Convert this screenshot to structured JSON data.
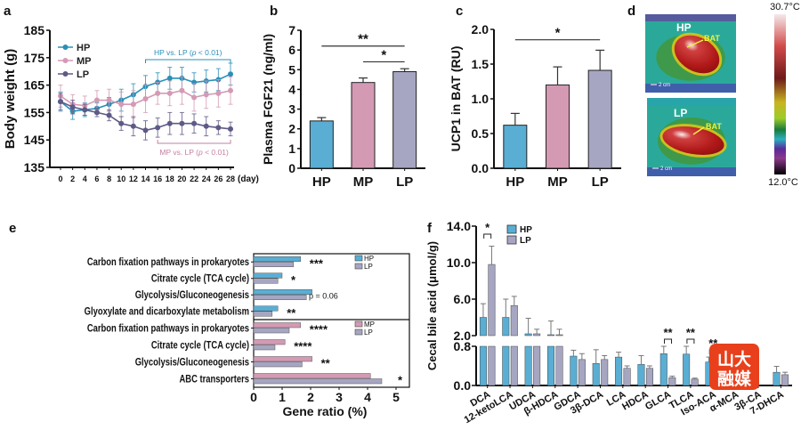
{
  "colors": {
    "HP": "#5aaed4",
    "MP": "#d49ab4",
    "LP": "#a6a6c2",
    "HP_line": "#2a8fb8",
    "MP_line": "#c47fa0",
    "LP_line": "#5e5a86",
    "axis": "#111111",
    "watermark_bg": "#e8401c",
    "watermark_text": "#ffffff"
  },
  "watermark": {
    "line1": "山大",
    "line2": "融媒"
  },
  "chart_data": [
    {
      "id": "a",
      "panel_letter": "a",
      "type": "line",
      "title": "",
      "xlabel": "(day)",
      "ylabel": "Body weight (g)",
      "x": [
        0,
        2,
        4,
        6,
        8,
        10,
        12,
        14,
        16,
        18,
        20,
        22,
        24,
        26,
        28
      ],
      "x_ticks": [
        "0",
        "2",
        "4",
        "6",
        "8",
        "10",
        "12",
        "14",
        "16",
        "18",
        "20",
        "22",
        "24",
        "26",
        "28"
      ],
      "y_ticks": [
        "135",
        "145",
        "155",
        "165",
        "175",
        "185"
      ],
      "ylim": [
        135,
        185
      ],
      "legend": [
        "HP",
        "MP",
        "LP"
      ],
      "legend_position": "top-left",
      "series": [
        {
          "name": "HP",
          "values": [
            159,
            155.5,
            156,
            156.5,
            158,
            159.5,
            161.5,
            164.5,
            166,
            167.5,
            167.5,
            166,
            166.5,
            167,
            169
          ],
          "errors": [
            3.5,
            3,
            2.5,
            2,
            2.5,
            4,
            4,
            4,
            3.5,
            4,
            4,
            3.5,
            4,
            4,
            4
          ]
        },
        {
          "name": "MP",
          "values": [
            161,
            158,
            157.5,
            159.5,
            159.5,
            158,
            158,
            160,
            162,
            162,
            163,
            160.5,
            161.5,
            162,
            163
          ],
          "errors": [
            4,
            3.5,
            3.5,
            3.5,
            4,
            4.5,
            5,
            5,
            4,
            4.5,
            5,
            5,
            5,
            5,
            5
          ]
        },
        {
          "name": "LP",
          "values": [
            159,
            157,
            156,
            155,
            154,
            151,
            150,
            148.5,
            149.5,
            151,
            151,
            151,
            150,
            149.5,
            149
          ],
          "errors": [
            3,
            2.5,
            2,
            1.5,
            2,
            2.5,
            3.5,
            3.5,
            3.5,
            4,
            4,
            3.5,
            3.5,
            2.5,
            2.5
          ]
        }
      ],
      "annotations": [
        {
          "text_pre": "HP vs. LP (",
          "p": "p",
          "text_post": " < 0.01)",
          "color": "HP_line",
          "from_day": 14,
          "to_day": 28,
          "position": "above"
        },
        {
          "text_pre": "MP vs. LP (",
          "p": "p",
          "text_post": " < 0.01)",
          "color": "MP_line",
          "from_day": 16,
          "to_day": 28,
          "position": "below"
        }
      ]
    },
    {
      "id": "b",
      "panel_letter": "b",
      "type": "bar",
      "ylabel": "Plasma FGF21 (ng/ml)",
      "categories": [
        "HP",
        "MP",
        "LP"
      ],
      "values": [
        2.4,
        4.35,
        4.9
      ],
      "errors": [
        0.17,
        0.23,
        0.15
      ],
      "ylim": [
        0,
        7
      ],
      "y_ticks": [
        "0",
        "1",
        "2",
        "3",
        "4",
        "5",
        "6",
        "7"
      ],
      "significance": [
        {
          "from": "HP",
          "to": "LP",
          "label": "**",
          "level": 6.2
        },
        {
          "from": "MP",
          "to": "LP",
          "label": "*",
          "level": 5.4
        }
      ]
    },
    {
      "id": "c",
      "panel_letter": "c",
      "type": "bar",
      "ylabel": "UCP1 in BAT (RU)",
      "categories": [
        "HP",
        "MP",
        "LP"
      ],
      "values": [
        0.62,
        1.2,
        1.41
      ],
      "errors": [
        0.17,
        0.26,
        0.29
      ],
      "ylim": [
        0,
        2.0
      ],
      "y_ticks": [
        "0.0",
        "0.5",
        "1.0",
        "1.5",
        "2.0"
      ],
      "significance": [
        {
          "from": "HP",
          "to": "LP",
          "label": "*",
          "level": 1.85
        }
      ]
    },
    {
      "id": "d",
      "panel_letter": "d",
      "type": "heatmap",
      "images": [
        {
          "label": "HP",
          "arrow_label": "BAT",
          "scale_label": "2 cm"
        },
        {
          "label": "LP",
          "arrow_label": "BAT",
          "scale_label": "2 cm"
        }
      ],
      "colorbar": {
        "max_label": "30.7°C",
        "min_label": "12.0°C",
        "max": 30.7,
        "min": 12.0
      }
    },
    {
      "id": "e",
      "panel_letter": "e",
      "type": "bar",
      "orientation": "horizontal",
      "xlabel": "Gene ratio (%)",
      "xlim": [
        0,
        5
      ],
      "x_ticks": [
        "0",
        "1",
        "2",
        "3",
        "4",
        "5"
      ],
      "groups": [
        {
          "legend": [
            "HP",
            "LP"
          ],
          "categories": [
            "Carbon fixation pathways in prokaryotes",
            "Citrate cycle (TCA cycle)",
            "Glycolysis/Gluconeogenesis",
            "Glyoxylate and dicarboxylate metabolism"
          ],
          "series": [
            {
              "name": "HP",
              "values": [
                1.65,
                1.0,
                2.05,
                0.85
              ]
            },
            {
              "name": "LP",
              "values": [
                1.4,
                0.85,
                1.85,
                0.65
              ]
            }
          ],
          "significance": [
            "***",
            "*",
            "p = 0.06",
            "**"
          ]
        },
        {
          "legend": [
            "MP",
            "LP"
          ],
          "categories": [
            "Carbon fixation pathways in prokaryotes",
            "Citrate cycle (TCA cycle)",
            "Glycolysis/Gluconeogenesis",
            "ABC transporters"
          ],
          "series": [
            {
              "name": "MP",
              "values": [
                1.65,
                1.1,
                2.05,
                4.1
              ]
            },
            {
              "name": "LP",
              "values": [
                1.25,
                0.75,
                1.7,
                4.5
              ]
            }
          ],
          "significance": [
            "****",
            "****",
            "**",
            "*"
          ]
        }
      ]
    },
    {
      "id": "f",
      "panel_letter": "f",
      "type": "bar",
      "ylabel": "Cecal bile acid (μmol/g)",
      "legend": [
        "HP",
        "LP"
      ],
      "legend_position": "top-left",
      "categories": [
        "DCA",
        "12-ketoLCA",
        "UDCA",
        "β-HDCA",
        "GDCA",
        "3β-DCA",
        "LCA",
        "HDCA",
        "GLCA",
        "TLCA",
        "Iso-ACA",
        "α-MCA",
        "3β-CA",
        "7-DHCA"
      ],
      "series": [
        {
          "name": "HP",
          "values": [
            4.0,
            4.0,
            2.2,
            2.1,
            0.6,
            0.45,
            0.58,
            0.43,
            0.65,
            0.64,
            0.48,
            null,
            null,
            0.27
          ],
          "errors": [
            1.5,
            2.0,
            1.7,
            1.5,
            0.12,
            0.28,
            0.1,
            0.18,
            0.15,
            0.16,
            0.1,
            null,
            null,
            0.12
          ]
        },
        {
          "name": "LP",
          "values": [
            9.8,
            5.3,
            2.2,
            2.1,
            0.53,
            0.53,
            0.35,
            0.35,
            0.16,
            0.13,
            0.1,
            null,
            null,
            0.22
          ],
          "errors": [
            2.0,
            1.0,
            0.5,
            0.6,
            0.12,
            0.08,
            0.05,
            0.05,
            0.03,
            0.02,
            0.02,
            null,
            null,
            0.05
          ]
        }
      ],
      "y_ticks_upper": [
        "2.0",
        "6.0",
        "10.0",
        "14.0"
      ],
      "y_ticks_lower": [
        "0.0",
        "0.8"
      ],
      "ylim_upper": [
        2.0,
        14.0
      ],
      "ylim_lower": [
        0.0,
        0.8
      ],
      "axis_break": true,
      "significance": [
        {
          "category": "DCA",
          "label": "*"
        },
        {
          "category": "GLCA",
          "label": "**"
        },
        {
          "category": "TLCA",
          "label": "**"
        },
        {
          "category": "Iso-ACA",
          "label": "**"
        }
      ]
    }
  ]
}
